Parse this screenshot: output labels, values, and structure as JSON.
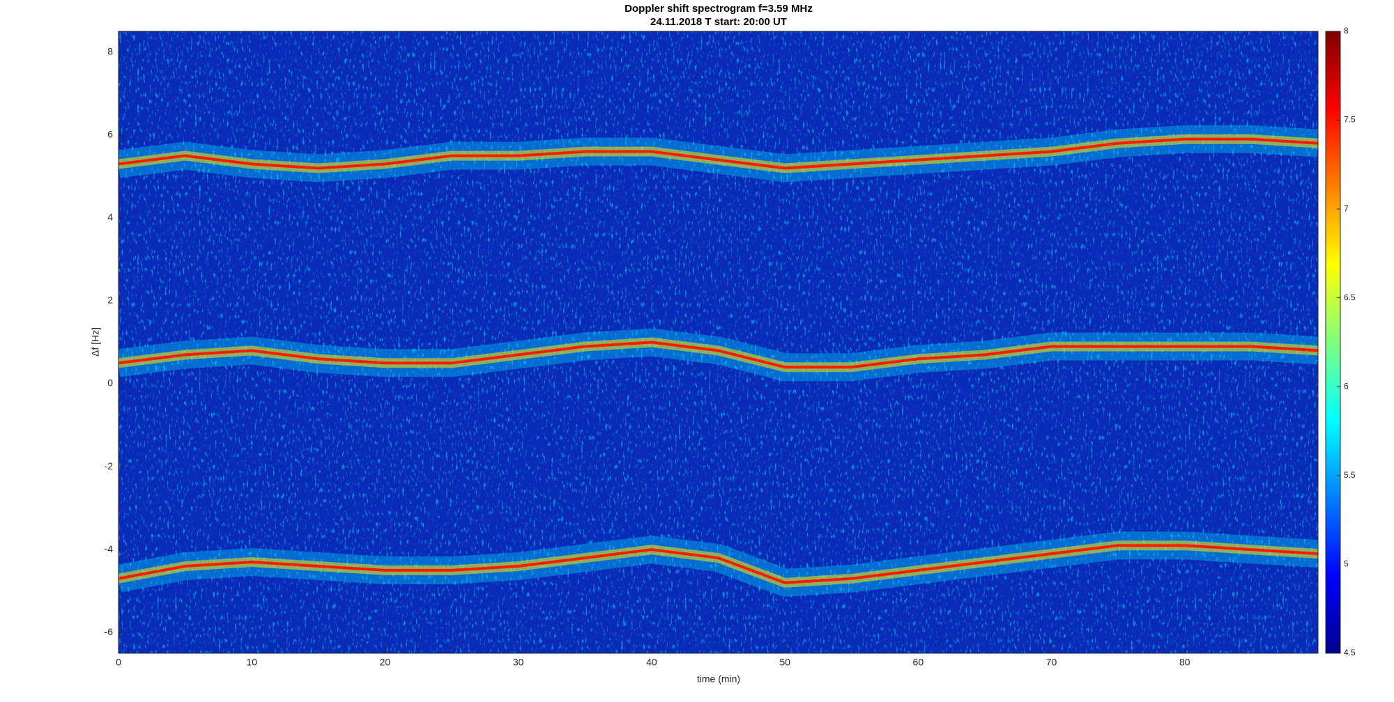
{
  "chart_data": {
    "type": "line",
    "title": "Doppler shift spectrogram f=3.59 MHz",
    "subtitle": "24.11.2018    T start: 20:00 UT",
    "x_label": "time (min)",
    "y_label": "Δf [Hz]",
    "x": [
      0,
      5,
      10,
      15,
      20,
      25,
      30,
      35,
      40,
      45,
      50,
      55,
      60,
      65,
      70,
      75,
      80,
      85,
      90
    ],
    "series": [
      {
        "color": "#ff1a00",
        "values": [
          5.3,
          5.5,
          5.3,
          5.2,
          5.3,
          5.5,
          5.5,
          5.6,
          5.6,
          5.4,
          5.2,
          5.3,
          5.4,
          5.5,
          5.6,
          5.8,
          5.9,
          5.9,
          5.8
        ]
      },
      {
        "color": "#ff1a00",
        "values": [
          0.5,
          0.7,
          0.8,
          0.6,
          0.5,
          0.5,
          0.7,
          0.9,
          1.0,
          0.8,
          0.4,
          0.4,
          0.6,
          0.7,
          0.9,
          0.9,
          0.9,
          0.9,
          0.8
        ]
      },
      {
        "color": "#ff1a00",
        "values": [
          -4.7,
          -4.4,
          -4.3,
          -4.4,
          -4.5,
          -4.5,
          -4.4,
          -4.2,
          -4.0,
          -4.2,
          -4.8,
          -4.7,
          -4.5,
          -4.3,
          -4.1,
          -3.9,
          -3.9,
          -4.0,
          -4.1
        ]
      }
    ],
    "xlim": [
      0,
      90
    ],
    "xticks": [
      0,
      10,
      20,
      30,
      40,
      50,
      60,
      70,
      80
    ],
    "ylim": [
      -6.5,
      8.5
    ],
    "yticks": [
      -6,
      -4,
      -2,
      0,
      2,
      4,
      6,
      8
    ],
    "colormap": "jet",
    "clim": [
      4.5,
      8
    ],
    "cticks": [
      4.5,
      5,
      5.5,
      6,
      6.5,
      7,
      7.5,
      8
    ]
  }
}
